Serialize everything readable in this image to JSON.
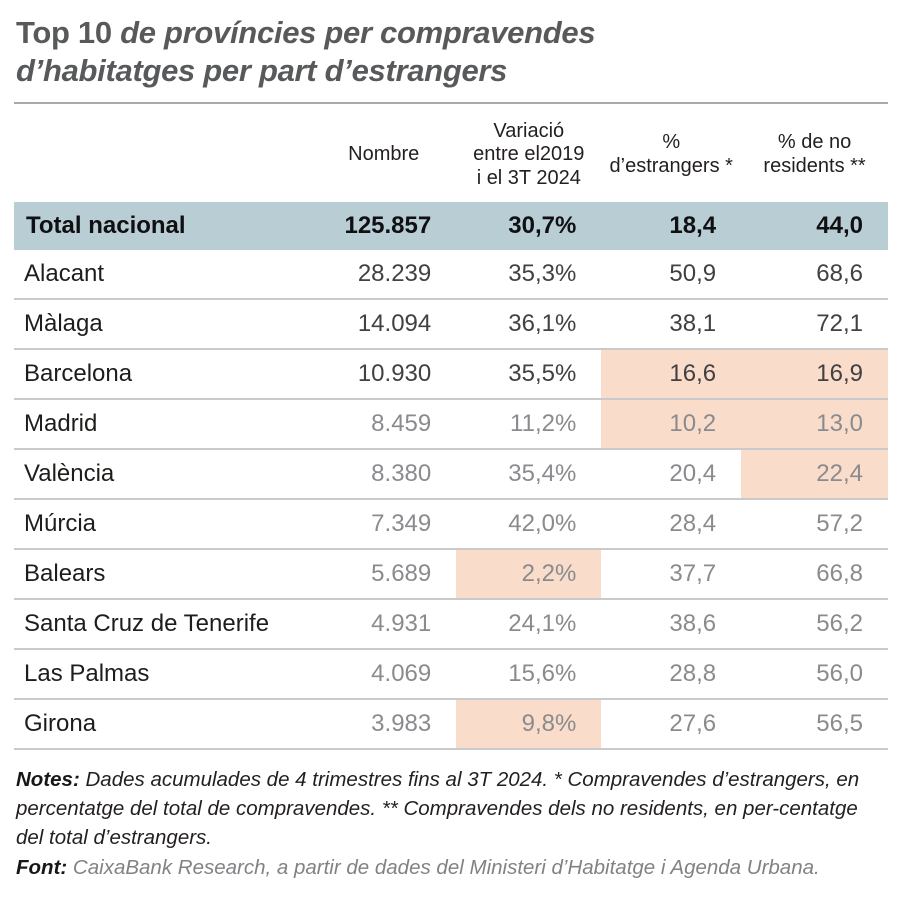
{
  "title": {
    "prefix": "Top 10",
    "line1": " de províncies per compravendes",
    "line2": "d’habitatges per part d’estrangers"
  },
  "table": {
    "headers": [
      "Nombre",
      "Variació\nentre el2019\ni el 3T 2024",
      "%\nd’estrangers *",
      "% de no\nresidents **"
    ],
    "total": {
      "name": "Total nacional",
      "values": [
        "125.857",
        "30,7%",
        "18,4",
        "44,0"
      ]
    },
    "rows": [
      {
        "name": "Alacant",
        "values": [
          "28.239",
          "35,3%",
          "50,9",
          "68,6"
        ],
        "muted": false,
        "highlights": [
          false,
          false,
          false,
          false
        ]
      },
      {
        "name": "Màlaga",
        "values": [
          "14.094",
          "36,1%",
          "38,1",
          "72,1"
        ],
        "muted": false,
        "highlights": [
          false,
          false,
          false,
          false
        ]
      },
      {
        "name": "Barcelona",
        "values": [
          "10.930",
          "35,5%",
          "16,6",
          "16,9"
        ],
        "muted": false,
        "highlights": [
          false,
          false,
          true,
          true
        ]
      },
      {
        "name": "Madrid",
        "values": [
          "8.459",
          "11,2%",
          "10,2",
          "13,0"
        ],
        "muted": true,
        "highlights": [
          false,
          false,
          true,
          true
        ]
      },
      {
        "name": "València",
        "values": [
          "8.380",
          "35,4%",
          "20,4",
          "22,4"
        ],
        "muted": true,
        "highlights": [
          false,
          false,
          false,
          true
        ]
      },
      {
        "name": "Múrcia",
        "values": [
          "7.349",
          "42,0%",
          "28,4",
          "57,2"
        ],
        "muted": true,
        "highlights": [
          false,
          false,
          false,
          false
        ]
      },
      {
        "name": "Balears",
        "values": [
          "5.689",
          "2,2%",
          "37,7",
          "66,8"
        ],
        "muted": true,
        "highlights": [
          false,
          true,
          false,
          false
        ]
      },
      {
        "name": "Santa Cruz de Tenerife",
        "values": [
          "4.931",
          "24,1%",
          "38,6",
          "56,2"
        ],
        "muted": true,
        "highlights": [
          false,
          false,
          false,
          false
        ]
      },
      {
        "name": "Las Palmas",
        "values": [
          "4.069",
          "15,6%",
          "28,8",
          "56,0"
        ],
        "muted": true,
        "highlights": [
          false,
          false,
          false,
          false
        ]
      },
      {
        "name": "Girona",
        "values": [
          "3.983",
          "9,8%",
          "27,6",
          "56,5"
        ],
        "muted": true,
        "highlights": [
          false,
          true,
          false,
          false
        ]
      }
    ]
  },
  "notes": {
    "label": "Notes:",
    "body": " Dades acumulades de 4 trimestres fins al 3T 2024. * Compravendes d’estrangers, en percentatge del total de compravendes. ** Compravendes dels no residents, en per-centatge del total d’estrangers."
  },
  "source": {
    "label": "Font:",
    "body": " CaixaBank Research, a partir de dades del Ministeri d’Habitatge i Agenda Urbana."
  },
  "colors": {
    "title_text": "#58595b",
    "divider": "#a7a9ac",
    "header_text": "#231f20",
    "total_row_bg": "#b9cdd5",
    "highlight_bg": "#fadcca",
    "row_line": "#c9cacc",
    "dark_value": "#414042",
    "muted_value": "#8a8b8e",
    "province_text": "#1d1d1b",
    "notes_text": "#231f20",
    "source_text": "#808285"
  },
  "chart_data": {
    "type": "table",
    "title": "Top 10 de províncies per compravendes d’habitatges per part d’estrangers",
    "columns": [
      "",
      "Nombre",
      "Variació entre el2019 i el 3T 2024",
      "% d’estrangers *",
      "% de no residents **"
    ],
    "rows": [
      [
        "Total nacional",
        "125.857",
        "30,7%",
        "18,4",
        "44,0"
      ],
      [
        "Alacant",
        "28.239",
        "35,3%",
        "50,9",
        "68,6"
      ],
      [
        "Màlaga",
        "14.094",
        "36,1%",
        "38,1",
        "72,1"
      ],
      [
        "Barcelona",
        "10.930",
        "35,5%",
        "16,6",
        "16,9"
      ],
      [
        "Madrid",
        "8.459",
        "11,2%",
        "10,2",
        "13,0"
      ],
      [
        "València",
        "8.380",
        "35,4%",
        "20,4",
        "22,4"
      ],
      [
        "Múrcia",
        "7.349",
        "42,0%",
        "28,4",
        "57,2"
      ],
      [
        "Balears",
        "5.689",
        "2,2%",
        "37,7",
        "66,8"
      ],
      [
        "Santa Cruz de Tenerife",
        "4.931",
        "24,1%",
        "38,6",
        "56,2"
      ],
      [
        "Las Palmas",
        "4.069",
        "15,6%",
        "28,8",
        "56,0"
      ],
      [
        "Girona",
        "3.983",
        "9,8%",
        "27,6",
        "56,5"
      ]
    ],
    "highlighted_cells": [
      {
        "row": "Barcelona",
        "columns": [
          "% d’estrangers *",
          "% de no residents **"
        ]
      },
      {
        "row": "Madrid",
        "columns": [
          "% d’estrangers *",
          "% de no residents **"
        ]
      },
      {
        "row": "València",
        "columns": [
          "% de no residents **"
        ]
      },
      {
        "row": "Balears",
        "columns": [
          "Variació entre el2019 i el 3T 2024"
        ]
      },
      {
        "row": "Girona",
        "columns": [
          "Variació entre el2019 i el 3T 2024"
        ]
      }
    ],
    "legend_position": "none",
    "grid": "horizontal-row-separators"
  }
}
